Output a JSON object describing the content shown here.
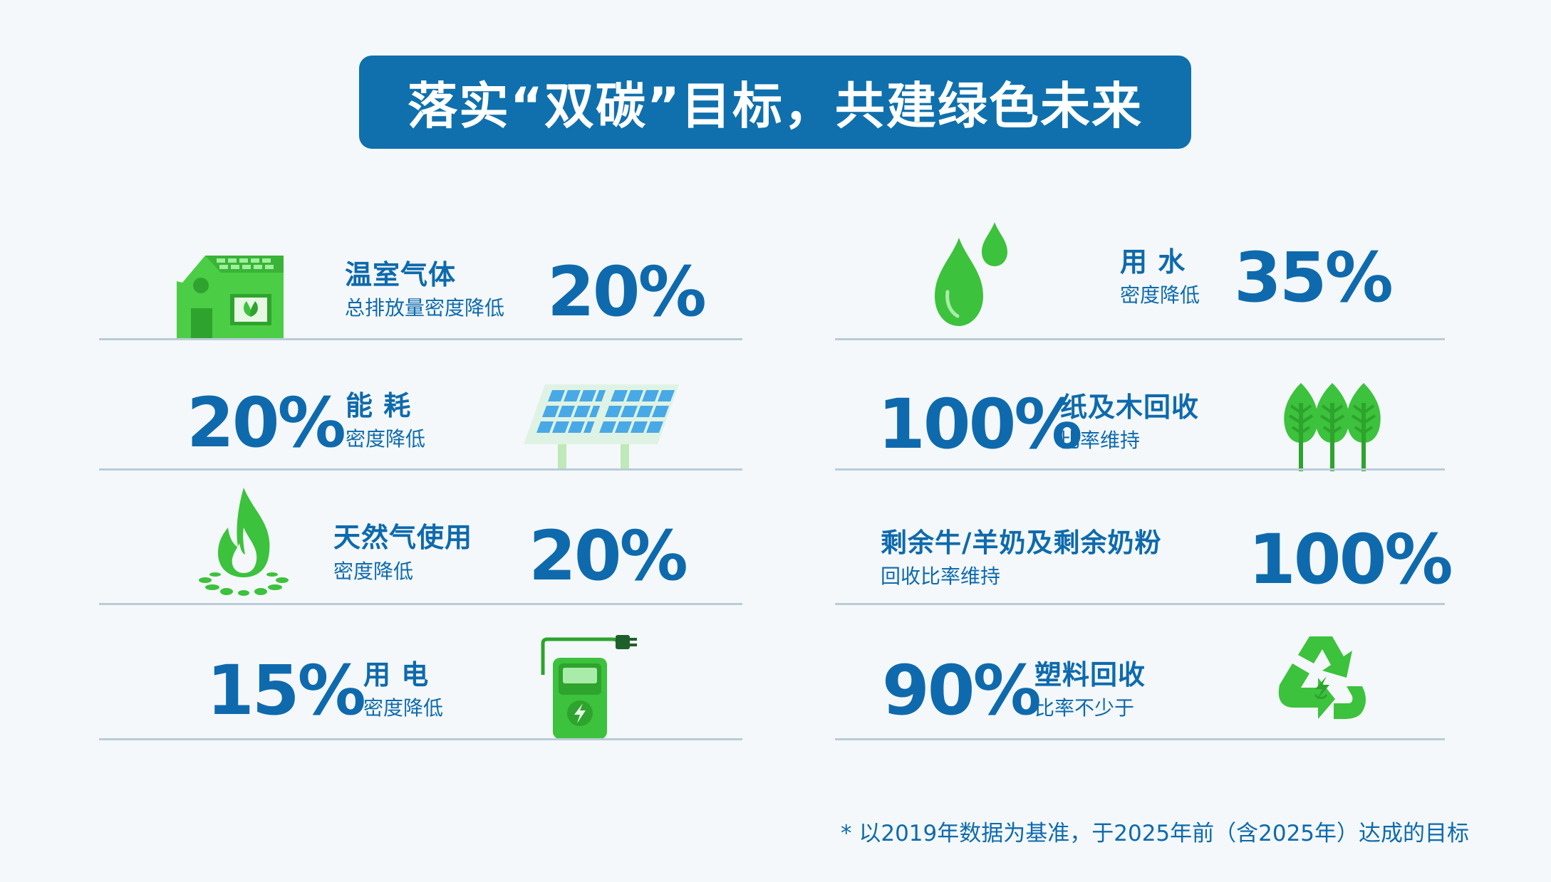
{
  "title": "落实“双碳”目标，共建绿色未来",
  "left_items": [
    {
      "label": "温室气体",
      "sub": "总排放量密度降低",
      "percent": "20%",
      "icon": "green-house-icon"
    },
    {
      "label": "能 耗",
      "sub": "密度降低",
      "percent": "20%",
      "icon": "solar-panel-icon"
    },
    {
      "label": "天然气使用",
      "sub": "密度降低",
      "percent": "20%",
      "icon": "gas-flame-icon"
    },
    {
      "label": "用 电",
      "sub": "密度降低",
      "percent": "15%",
      "icon": "ev-charger-icon"
    }
  ],
  "right_items": [
    {
      "label": "用 水",
      "sub": "密度降低",
      "percent": "35%",
      "icon": "water-drops-icon"
    },
    {
      "label": "纸及木回收",
      "sub": "比率维持",
      "percent": "100%",
      "icon": "trees-icon"
    },
    {
      "label": "剩余牛/羊奶及剩余奶粉",
      "sub": "回收比率维持",
      "percent": "100%",
      "icon": "milk-recycle-icon"
    },
    {
      "label": "塑料回收",
      "sub": "比率不少于",
      "percent": "90%",
      "icon": "recycle-icon"
    }
  ],
  "footnote": "* 以2019年数据为基准，于2025年前（含2025年）达成的目标",
  "colors": {
    "primary_blue": "#0f70ad",
    "text_blue": "#0e6aad",
    "green": "#3cc23c",
    "light_green": "#5fd45a",
    "divider": "#b9ccd7",
    "background": "#f4f8fa"
  }
}
